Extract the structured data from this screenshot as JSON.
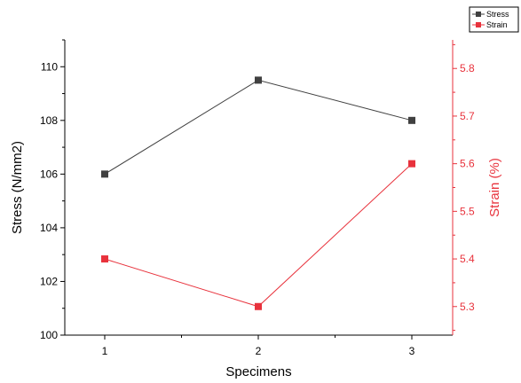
{
  "chart_data": {
    "type": "line",
    "categories": [
      "1",
      "2",
      "3"
    ],
    "xlabel": "Specimens",
    "series": [
      {
        "name": "Stress",
        "axis": "left",
        "color": "#404040",
        "marker": "square",
        "values": [
          106.0,
          109.5,
          108.0
        ]
      },
      {
        "name": "Strain",
        "axis": "right",
        "color": "#e8323c",
        "marker": "square",
        "values": [
          5.4,
          5.3,
          5.6
        ]
      }
    ],
    "y_left": {
      "label": "Stress (N/mm2)",
      "ylim": [
        100,
        111
      ],
      "ticks": [
        "100",
        "102",
        "104",
        "106",
        "108",
        "110"
      ],
      "color": "#000000"
    },
    "y_right": {
      "label": "Strain (%)",
      "ylim": [
        5.24,
        5.86
      ],
      "ticks": [
        "5.3",
        "5.4",
        "5.5",
        "5.6",
        "5.7",
        "5.8"
      ],
      "color": "#e8323c"
    },
    "grid": false,
    "legend": "top-right"
  }
}
